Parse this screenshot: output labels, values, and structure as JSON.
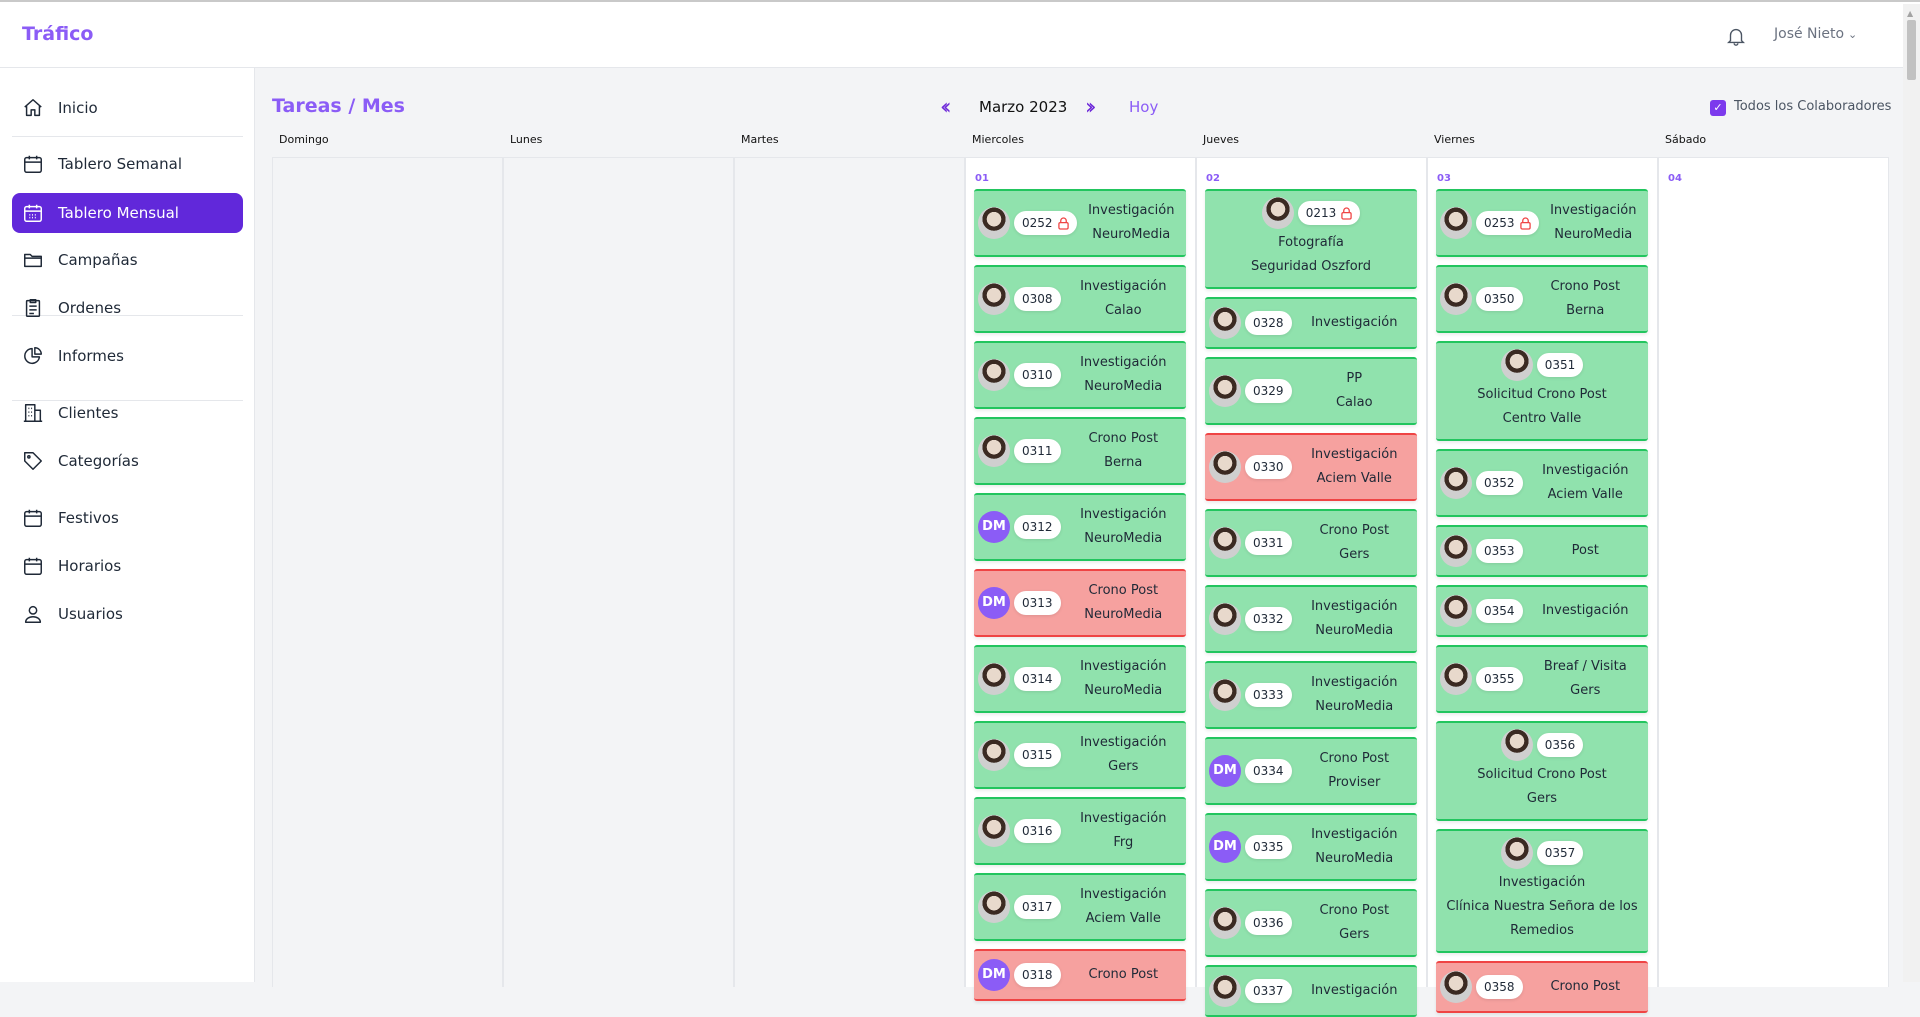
{
  "app": {
    "brand": "Tráfico",
    "user": "José Nieto"
  },
  "sidebar": {
    "items": [
      {
        "label": "Inicio",
        "icon": "home-icon"
      },
      {
        "label": "Tablero Semanal",
        "icon": "calendar-icon"
      },
      {
        "label": "Tablero Mensual",
        "icon": "calendar-grid-icon",
        "active": true
      },
      {
        "label": "Campañas",
        "icon": "folder-icon"
      },
      {
        "label": "Ordenes",
        "icon": "clipboard-icon"
      },
      {
        "label": "Informes",
        "icon": "pie-chart-icon"
      },
      {
        "label": "Clientes",
        "icon": "building-icon"
      },
      {
        "label": "Categorías",
        "icon": "tag-icon"
      },
      {
        "label": "Festivos",
        "icon": "calendar-icon"
      },
      {
        "label": "Horarios",
        "icon": "calendar-icon"
      },
      {
        "label": "Usuarios",
        "icon": "user-icon"
      }
    ]
  },
  "main": {
    "title": "Tareas / Mes",
    "month": "Marzo 2023",
    "today": "Hoy",
    "prev": "«",
    "next": "»",
    "filter_label": "Todos los Colaboradores",
    "filter_checked": true
  },
  "days": [
    "Domingo",
    "Lunes",
    "Martes",
    "Miercoles",
    "Jueves",
    "Viernes",
    "Sábado"
  ],
  "colors": {
    "accent": "#8b5cf6",
    "active": "#6128da",
    "green": "#90e2ad",
    "red": "#f6a19f"
  },
  "calendar": [
    {
      "date": "",
      "cards": []
    },
    {
      "date": "",
      "cards": []
    },
    {
      "date": "",
      "cards": []
    },
    {
      "date": "01",
      "cards": [
        {
          "id": "0252",
          "av": "photo",
          "lock": true,
          "lines": [
            "Investigación",
            "NeuroMedia"
          ]
        },
        {
          "id": "0308",
          "av": "photo",
          "lines": [
            "Investigación",
            "Calao"
          ]
        },
        {
          "id": "0310",
          "av": "photo",
          "lines": [
            "Investigación",
            "NeuroMedia"
          ]
        },
        {
          "id": "0311",
          "av": "photo",
          "lines": [
            "Crono Post",
            "Berna"
          ]
        },
        {
          "id": "0312",
          "av": "DM",
          "lines": [
            "Investigación",
            "NeuroMedia"
          ]
        },
        {
          "id": "0313",
          "av": "DM",
          "red": true,
          "lines": [
            "Crono Post",
            "NeuroMedia"
          ]
        },
        {
          "id": "0314",
          "av": "photo",
          "lines": [
            "Investigación",
            "NeuroMedia"
          ]
        },
        {
          "id": "0315",
          "av": "photo",
          "lines": [
            "Investigación",
            "Gers"
          ]
        },
        {
          "id": "0316",
          "av": "photo",
          "lines": [
            "Investigación",
            "Frg"
          ]
        },
        {
          "id": "0317",
          "av": "photo",
          "lines": [
            "Investigación",
            "Aciem Valle"
          ]
        },
        {
          "id": "0318",
          "av": "DM",
          "red": true,
          "lines": [
            "Crono Post",
            ""
          ]
        }
      ]
    },
    {
      "date": "02",
      "cards": [
        {
          "id": "0213",
          "av": "photo",
          "lock": true,
          "stack": true,
          "lines": [
            "Fotografía",
            "Seguridad Oszford"
          ]
        },
        {
          "id": "0328",
          "av": "photo",
          "lines": [
            "Investigación"
          ]
        },
        {
          "id": "0329",
          "av": "photo",
          "lines": [
            "PP",
            "Calao"
          ]
        },
        {
          "id": "0330",
          "av": "photo",
          "red": true,
          "lines": [
            "Investigación",
            "Aciem Valle"
          ]
        },
        {
          "id": "0331",
          "av": "photo",
          "lines": [
            "Crono Post",
            "Gers"
          ]
        },
        {
          "id": "0332",
          "av": "photo",
          "lines": [
            "Investigación",
            "NeuroMedia"
          ]
        },
        {
          "id": "0333",
          "av": "photo",
          "lines": [
            "Investigación",
            "NeuroMedia"
          ]
        },
        {
          "id": "0334",
          "av": "DM",
          "lines": [
            "Crono Post",
            "Proviser"
          ]
        },
        {
          "id": "0335",
          "av": "DM",
          "lines": [
            "Investigación",
            "NeuroMedia"
          ]
        },
        {
          "id": "0336",
          "av": "photo",
          "lines": [
            "Crono Post",
            "Gers"
          ]
        },
        {
          "id": "0337",
          "av": "photo",
          "lines": [
            "Investigación",
            ""
          ]
        }
      ]
    },
    {
      "date": "03",
      "cards": [
        {
          "id": "0253",
          "av": "photo",
          "lock": true,
          "lines": [
            "Investigación",
            "NeuroMedia"
          ]
        },
        {
          "id": "0350",
          "av": "photo",
          "lines": [
            "Crono Post",
            "Berna"
          ]
        },
        {
          "id": "0351",
          "av": "photo",
          "stack": true,
          "lines": [
            "Solicitud Crono Post",
            "Centro Valle"
          ]
        },
        {
          "id": "0352",
          "av": "photo",
          "lines": [
            "Investigación",
            "Aciem Valle"
          ]
        },
        {
          "id": "0353",
          "av": "photo",
          "lines": [
            "Post"
          ]
        },
        {
          "id": "0354",
          "av": "photo",
          "lines": [
            "Investigación"
          ]
        },
        {
          "id": "0355",
          "av": "photo",
          "lines": [
            "Breaf / Visita",
            "Gers"
          ]
        },
        {
          "id": "0356",
          "av": "photo",
          "stack": true,
          "lines": [
            "Solicitud Crono Post",
            "Gers"
          ]
        },
        {
          "id": "0357",
          "av": "photo",
          "stack": true,
          "lines": [
            "Investigación",
            "Clínica Nuestra Señora de los Remedios"
          ]
        },
        {
          "id": "0358",
          "av": "photo",
          "red": true,
          "lines": [
            "Crono Post",
            ""
          ]
        }
      ]
    },
    {
      "date": "04",
      "cards": []
    }
  ]
}
